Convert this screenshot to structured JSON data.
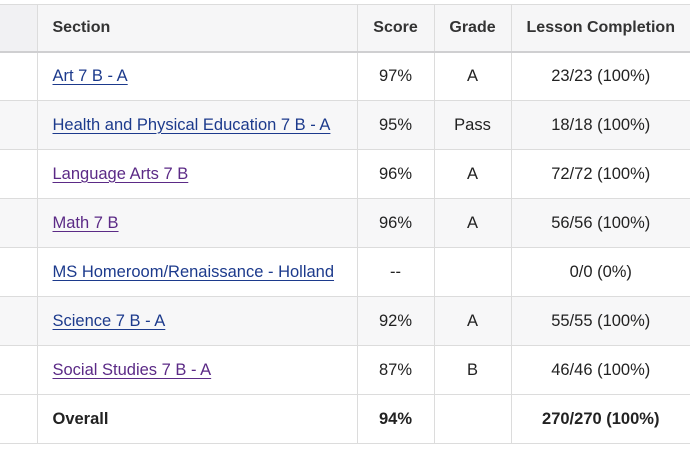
{
  "table": {
    "headers": {
      "section": "Section",
      "score": "Score",
      "grade": "Grade",
      "lesson_completion": "Lesson Completion"
    },
    "rows": [
      {
        "section": "Art 7 B - A",
        "score": "97%",
        "grade": "A",
        "lesson_completion": "23/23 (100%)",
        "link_state": "unvisited"
      },
      {
        "section": "Health and Physical Education 7 B - A",
        "score": "95%",
        "grade": "Pass",
        "lesson_completion": "18/18 (100%)",
        "link_state": "unvisited"
      },
      {
        "section": "Language Arts 7 B",
        "score": "96%",
        "grade": "A",
        "lesson_completion": "72/72 (100%)",
        "link_state": "visited"
      },
      {
        "section": "Math 7 B",
        "score": "96%",
        "grade": "A",
        "lesson_completion": "56/56 (100%)",
        "link_state": "visited"
      },
      {
        "section": "MS Homeroom/Renaissance - Holland",
        "score": "--",
        "grade": "",
        "lesson_completion": "0/0 (0%)",
        "link_state": "unvisited"
      },
      {
        "section": "Science 7 B - A",
        "score": "92%",
        "grade": "A",
        "lesson_completion": "55/55 (100%)",
        "link_state": "unvisited"
      },
      {
        "section": "Social Studies 7 B - A",
        "score": "87%",
        "grade": "B",
        "lesson_completion": "46/46 (100%)",
        "link_state": "visited"
      }
    ],
    "overall": {
      "label": "Overall",
      "score": "94%",
      "grade": "",
      "lesson_completion": "270/270 (100%)"
    }
  },
  "colors": {
    "link": "#1c3a8c",
    "link_visited": "#5b2a86",
    "header_bg": "#f6f6f7",
    "row_alt_bg": "#f7f7f8",
    "border": "#dcdcdc"
  }
}
